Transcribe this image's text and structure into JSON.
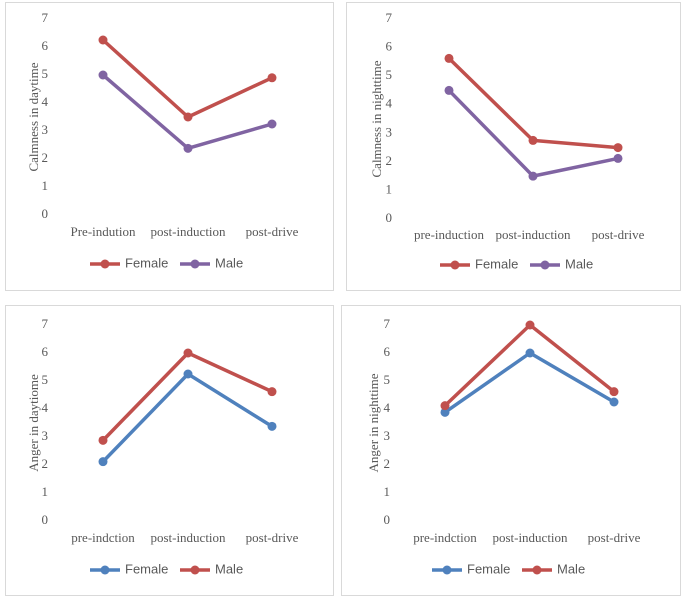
{
  "chart_data": [
    {
      "type": "line",
      "y_label": "Calmness in daytime",
      "categories": [
        "Pre-indution",
        "post-induction",
        "post-drive"
      ],
      "series": [
        {
          "name": "Female",
          "color": "#c0504d",
          "values": [
            6.25,
            3.5,
            4.9
          ]
        },
        {
          "name": "Male",
          "color": "#8064a2",
          "values": [
            5.0,
            2.38,
            3.25
          ]
        }
      ],
      "ylim": [
        0,
        7
      ],
      "yticks": [
        0,
        1,
        2,
        3,
        4,
        5,
        6,
        7
      ],
      "grid": false,
      "legend": "bottom"
    },
    {
      "type": "line",
      "y_label": "Calmness in nighttime",
      "categories": [
        "pre-induction",
        "post-induction",
        "post-drive"
      ],
      "series": [
        {
          "name": "Female",
          "color": "#c0504d",
          "values": [
            5.62,
            2.75,
            2.5
          ]
        },
        {
          "name": "Male",
          "color": "#8064a2",
          "values": [
            4.5,
            1.5,
            2.12
          ]
        }
      ],
      "ylim": [
        0,
        7
      ],
      "yticks": [
        0,
        1,
        2,
        3,
        4,
        5,
        6,
        7
      ],
      "grid": false,
      "legend": "bottom"
    },
    {
      "type": "line",
      "y_label": "Anger in daytiome",
      "categories": [
        "pre-indction",
        "post-induction",
        "post-drive"
      ],
      "series": [
        {
          "name": "Female",
          "color": "#4f81bd",
          "values": [
            2.12,
            5.25,
            3.38
          ]
        },
        {
          "name": "Male",
          "color": "#c0504d",
          "values": [
            2.88,
            6.0,
            4.62
          ]
        }
      ],
      "ylim": [
        0,
        7
      ],
      "yticks": [
        0,
        1,
        2,
        3,
        4,
        5,
        6,
        7
      ],
      "grid": false,
      "legend": "bottom"
    },
    {
      "type": "line",
      "y_label": "Anger in nighttime",
      "categories": [
        "pre-indction",
        "post-induction",
        "post-drive"
      ],
      "series": [
        {
          "name": "Female",
          "color": "#4f81bd",
          "values": [
            3.88,
            6.0,
            4.25
          ]
        },
        {
          "name": "Male",
          "color": "#c0504d",
          "values": [
            4.12,
            7.0,
            4.62
          ]
        }
      ],
      "ylim": [
        0,
        7
      ],
      "yticks": [
        0,
        1,
        2,
        3,
        4,
        5,
        6,
        7
      ],
      "grid": false,
      "legend": "bottom"
    }
  ]
}
